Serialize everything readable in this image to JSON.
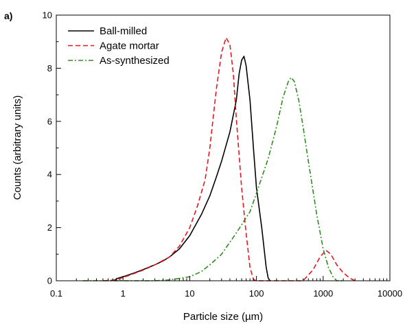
{
  "panel_label": "a)",
  "chart_data": {
    "type": "line",
    "xlabel": "Particle size (µm)",
    "ylabel": "Counts (arbitrary units)",
    "x_scale": "log",
    "xlim": [
      0.1,
      10000
    ],
    "ylim": [
      0,
      10
    ],
    "x_ticks": [
      0.1,
      1,
      10,
      100,
      1000,
      10000
    ],
    "x_tick_labels": [
      "0.1",
      "1",
      "10",
      "100",
      "1000",
      "10000"
    ],
    "y_ticks": [
      0,
      2,
      4,
      6,
      8,
      10
    ],
    "y_tick_labels": [
      "0",
      "2",
      "4",
      "6",
      "8",
      "10"
    ],
    "grid": false,
    "legend_position": "top-left",
    "series": [
      {
        "name": "Ball-milled",
        "color": "#000000",
        "dash": "solid",
        "points": [
          [
            0.75,
            0
          ],
          [
            0.8,
            0.08
          ],
          [
            1,
            0.15
          ],
          [
            1.5,
            0.3
          ],
          [
            2,
            0.42
          ],
          [
            3,
            0.6
          ],
          [
            4,
            0.75
          ],
          [
            5,
            0.9
          ],
          [
            7,
            1.2
          ],
          [
            10,
            1.7
          ],
          [
            15,
            2.5
          ],
          [
            20,
            3.2
          ],
          [
            25,
            3.9
          ],
          [
            30,
            4.5
          ],
          [
            40,
            5.6
          ],
          [
            50,
            6.8
          ],
          [
            55,
            7.8
          ],
          [
            60,
            8.3
          ],
          [
            65,
            8.45
          ],
          [
            70,
            8.1
          ],
          [
            80,
            6.8
          ],
          [
            90,
            5.0
          ],
          [
            100,
            3.5
          ],
          [
            120,
            2.0
          ],
          [
            140,
            0.5
          ],
          [
            150,
            0.1
          ],
          [
            160,
            0
          ]
        ]
      },
      {
        "name": "Agate mortar",
        "color": "#e8141c",
        "dash": "dashed",
        "points": [
          [
            0.5,
            0
          ],
          [
            0.7,
            0.02
          ],
          [
            1,
            0.12
          ],
          [
            2,
            0.4
          ],
          [
            3,
            0.6
          ],
          [
            5,
            0.9
          ],
          [
            7,
            1.3
          ],
          [
            10,
            2.0
          ],
          [
            13,
            2.8
          ],
          [
            17,
            3.8
          ],
          [
            20,
            5.0
          ],
          [
            25,
            7.2
          ],
          [
            30,
            8.6
          ],
          [
            35,
            9.15
          ],
          [
            40,
            8.9
          ],
          [
            45,
            7.8
          ],
          [
            50,
            6.1
          ],
          [
            60,
            3.5
          ],
          [
            70,
            1.8
          ],
          [
            80,
            0.5
          ],
          [
            90,
            0.05
          ],
          [
            100,
            0
          ],
          [
            500,
            0
          ],
          [
            700,
            0.4
          ],
          [
            900,
            0.9
          ],
          [
            1100,
            1.15
          ],
          [
            1300,
            1.0
          ],
          [
            1600,
            0.6
          ],
          [
            2000,
            0.3
          ],
          [
            2500,
            0.1
          ],
          [
            3000,
            0
          ]
        ]
      },
      {
        "name": "As-synthesized",
        "color": "#2e8b1e",
        "dash": "dashdot",
        "points": [
          [
            0.25,
            0
          ],
          [
            0.8,
            0
          ],
          [
            3,
            0
          ],
          [
            5,
            0.03
          ],
          [
            10,
            0.15
          ],
          [
            15,
            0.35
          ],
          [
            20,
            0.6
          ],
          [
            30,
            1.0
          ],
          [
            50,
            1.8
          ],
          [
            80,
            2.6
          ],
          [
            100,
            3.3
          ],
          [
            150,
            4.6
          ],
          [
            200,
            5.8
          ],
          [
            250,
            6.9
          ],
          [
            300,
            7.5
          ],
          [
            330,
            7.65
          ],
          [
            370,
            7.5
          ],
          [
            430,
            6.8
          ],
          [
            500,
            5.8
          ],
          [
            600,
            4.5
          ],
          [
            800,
            2.5
          ],
          [
            1000,
            1.2
          ],
          [
            1200,
            0.5
          ],
          [
            1400,
            0.15
          ],
          [
            1600,
            0
          ],
          [
            2000,
            0
          ]
        ]
      }
    ]
  }
}
